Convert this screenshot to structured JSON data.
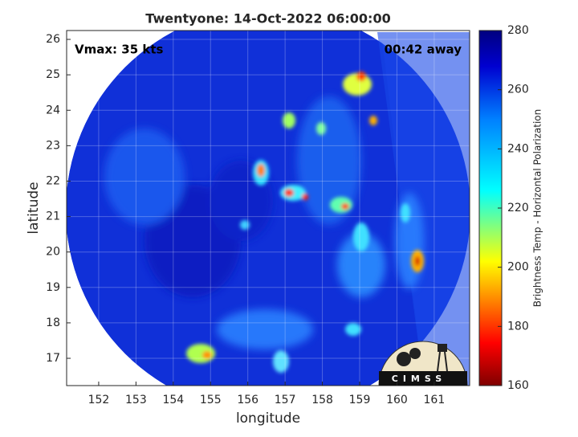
{
  "title": "Twentyone: 14-Oct-2022 06:00:00",
  "annotations": {
    "vmax": "Vmax: 35 kts",
    "time_offset": "00:42 away"
  },
  "x_axis": {
    "label": "longitude",
    "lim": [
      151.14,
      161.95
    ],
    "ticks": [
      152,
      153,
      154,
      155,
      156,
      157,
      158,
      159,
      160,
      161
    ]
  },
  "y_axis": {
    "label": "latitude",
    "lim": [
      16.23,
      26.25
    ],
    "ticks": [
      17,
      18,
      19,
      20,
      21,
      22,
      23,
      24,
      25,
      26
    ]
  },
  "colorbar": {
    "label": "Brightness Temp - Horizontal Polarization",
    "lim": [
      160,
      280
    ],
    "ticks": [
      160,
      180,
      200,
      220,
      240,
      260,
      280
    ]
  },
  "logo": "CIMSS"
}
